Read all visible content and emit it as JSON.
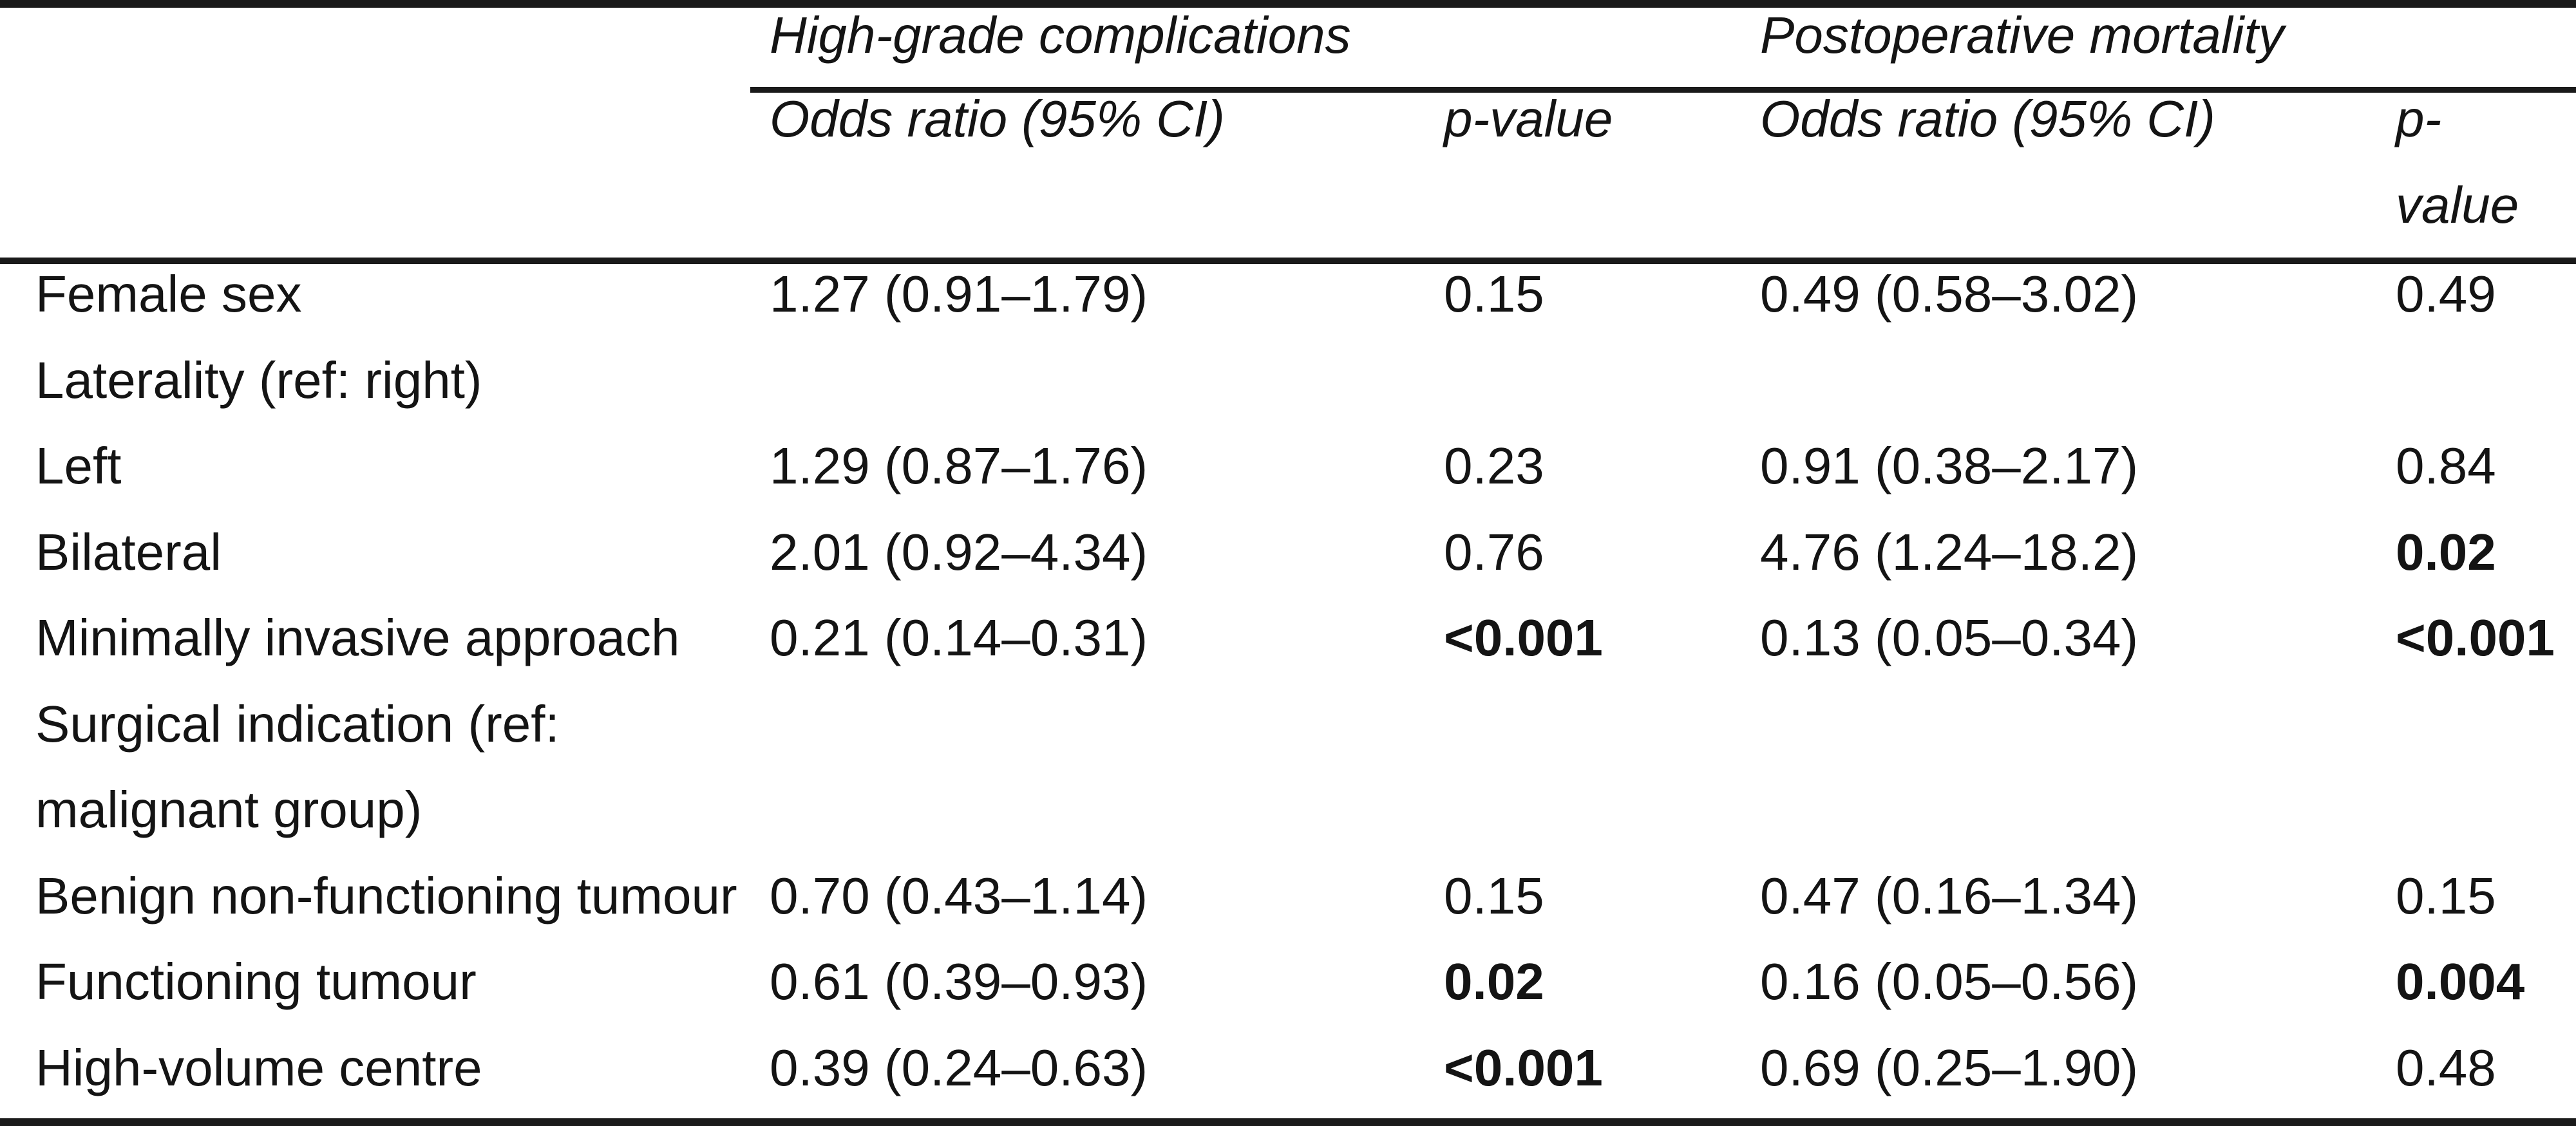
{
  "table": {
    "group_headers": {
      "complications": "High-grade complications",
      "mortality": "Postoperative mortality"
    },
    "column_headers": {
      "or_complications": "Odds ratio (95% CI)",
      "p_complications": "p-value",
      "or_mortality": "Odds ratio (95% CI)",
      "p_mortality_line1": "p-",
      "p_mortality_line2": "value"
    },
    "rows": [
      {
        "label": "Female sex",
        "or1": "1.27 (0.91–1.79)",
        "p1": "0.15",
        "or2": "0.49 (0.58–3.02)",
        "p2": "0.49",
        "p1_bold": false,
        "p2_bold": false
      },
      {
        "label": "Laterality (ref: right)"
      },
      {
        "label": "Left",
        "or1": "1.29 (0.87–1.76)",
        "p1": "0.23",
        "or2": "0.91 (0.38–2.17)",
        "p2": "0.84",
        "p1_bold": false,
        "p2_bold": false
      },
      {
        "label": "Bilateral",
        "or1": "2.01 (0.92–4.34)",
        "p1": "0.76",
        "or2": "4.76 (1.24–18.2)",
        "p2": "0.02",
        "p1_bold": false,
        "p2_bold": true
      },
      {
        "label": "Minimally invasive approach",
        "or1": "0.21 (0.14–0.31)",
        "p1": "<0.001",
        "or2": "0.13 (0.05–0.34)",
        "p2": "<0.001",
        "p1_bold": true,
        "p2_bold": true
      },
      {
        "label": "Surgical indication (ref:"
      },
      {
        "label": "malignant group)"
      },
      {
        "label": "Benign non-functioning tumour",
        "or1": "0.70 (0.43–1.14)",
        "p1": "0.15",
        "or2": "0.47 (0.16–1.34)",
        "p2": "0.15",
        "p1_bold": false,
        "p2_bold": false
      },
      {
        "label": "Functioning tumour",
        "or1": "0.61 (0.39–0.93)",
        "p1": "0.02",
        "or2": "0.16 (0.05–0.56)",
        "p2": "0.004",
        "p1_bold": true,
        "p2_bold": true
      },
      {
        "label": "High-volume centre",
        "or1": "0.39 (0.24–0.63)",
        "p1": "<0.001",
        "or2": "0.69 (0.25–1.90)",
        "p2": "0.48",
        "p1_bold": true,
        "p2_bold": false
      }
    ]
  }
}
